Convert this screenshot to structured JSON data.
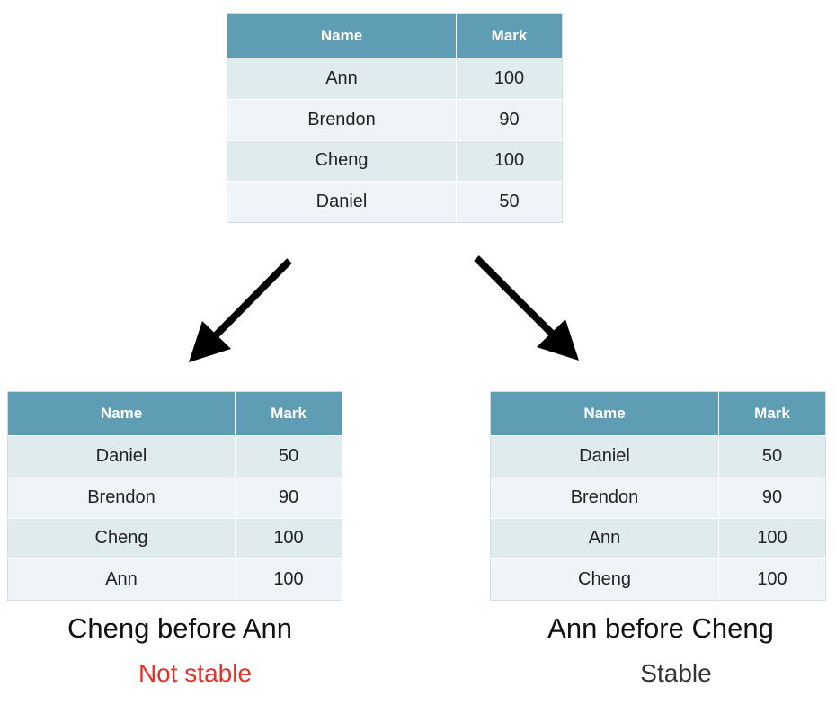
{
  "headers": {
    "name": "Name",
    "mark": "Mark"
  },
  "top_table": {
    "rows": [
      {
        "name": "Ann",
        "mark": "100"
      },
      {
        "name": "Brendon",
        "mark": "90"
      },
      {
        "name": "Cheng",
        "mark": "100"
      },
      {
        "name": "Daniel",
        "mark": "50"
      }
    ]
  },
  "left_table": {
    "rows": [
      {
        "name": "Daniel",
        "mark": "50"
      },
      {
        "name": "Brendon",
        "mark": "90"
      },
      {
        "name": "Cheng",
        "mark": "100"
      },
      {
        "name": "Ann",
        "mark": "100"
      }
    ],
    "caption": "Cheng before Ann",
    "verdict": "Not stable",
    "verdict_color": "#e0342b"
  },
  "right_table": {
    "rows": [
      {
        "name": "Daniel",
        "mark": "50"
      },
      {
        "name": "Brendon",
        "mark": "90"
      },
      {
        "name": "Ann",
        "mark": "100"
      },
      {
        "name": "Cheng",
        "mark": "100"
      }
    ],
    "caption": "Ann before Cheng",
    "verdict": "Stable",
    "verdict_color": "#333333"
  },
  "colors": {
    "header_bg": "#5f9db4",
    "row_odd": "#e0ebee",
    "row_even": "#eef4f7"
  }
}
